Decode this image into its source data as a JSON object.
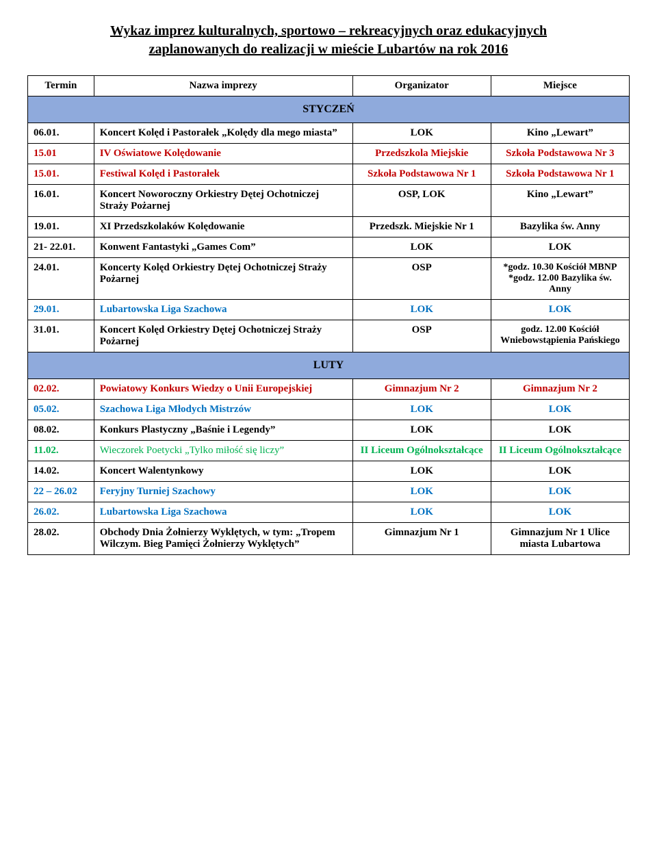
{
  "title_line1": "Wykaz imprez kulturalnych, sportowo – rekreacyjnych oraz edukacyjnych",
  "title_line2": "zaplanowanych do realizacji w mieście Lubartów na rok 2016",
  "columns": {
    "date": "Termin",
    "name": "Nazwa imprezy",
    "org": "Organizator",
    "place": "Miejsce"
  },
  "months": {
    "jan": "STYCZEŃ",
    "feb": "LUTY"
  },
  "colors": {
    "red": "#c00000",
    "blue": "#0070c0",
    "green": "#00b050",
    "black": "#000000",
    "month_bg": "#8faadc"
  },
  "typography": {
    "title_fontsize": 20,
    "header_fontsize": 15,
    "cell_fontsize": 15,
    "month_fontsize": 16,
    "font_family": "Times New Roman"
  },
  "rows_jan": [
    {
      "date": "06.01.",
      "name": "Koncert Kolęd i Pastorałek „Kolędy dla mego miasta”",
      "org": "LOK",
      "place": "Kino „Lewart”",
      "color": "black"
    },
    {
      "date": "15.01",
      "name": "IV Oświatowe Kolędowanie",
      "org": "Przedszkola Miejskie",
      "place": "Szkoła Podstawowa Nr 3",
      "color": "red"
    },
    {
      "date": "15.01.",
      "name": "Festiwal Kolęd i Pastorałek",
      "org": "Szkoła Podstawowa Nr 1",
      "place": "Szkoła Podstawowa  Nr 1",
      "color": "red"
    },
    {
      "date": "16.01.",
      "name": "Koncert Noworoczny Orkiestry Dętej Ochotniczej Straży Pożarnej",
      "org": "OSP, LOK",
      "place": "Kino „Lewart”",
      "color": "black"
    },
    {
      "date": "19.01.",
      "name": "XI Przedszkolaków Kolędowanie",
      "org": "Przedszk. Miejskie Nr 1",
      "place": "Bazylika św. Anny",
      "color": "black"
    },
    {
      "date": "21- 22.01.",
      "name": "Konwent Fantastyki „Games Com”",
      "org": "LOK",
      "place": "LOK",
      "color": "black"
    },
    {
      "date": "24.01.",
      "name": "Koncerty Kolęd Orkiestry Dętej Ochotniczej Straży Pożarnej",
      "org": "OSP",
      "place_line1": "*godz. 10.30 Kościół MBNP",
      "place_line2": "*godz. 12.00 Bazylika św. Anny",
      "color": "black",
      "place_multi": true
    },
    {
      "date": "29.01.",
      "name": "Lubartowska Liga Szachowa",
      "org": "LOK",
      "place": "LOK",
      "color": "blue"
    },
    {
      "date": "31.01.",
      "name": "Koncert Kolęd Orkiestry Dętej Ochotniczej Straży Pożarnej",
      "org": "OSP",
      "place_line1": "godz. 12.00 Kościół Wniebowstąpienia Pańskiego",
      "color": "black",
      "place_single_multi": true
    }
  ],
  "rows_feb": [
    {
      "date": "02.02.",
      "name": "Powiatowy Konkurs Wiedzy o Unii  Europejskiej",
      "org": "Gimnazjum Nr 2",
      "place": "Gimnazjum Nr 2",
      "color": "red"
    },
    {
      "date": "05.02.",
      "name": "Szachowa Liga Młodych Mistrzów",
      "org": "LOK",
      "place": "LOK",
      "color": "blue"
    },
    {
      "date": "08.02.",
      "name": "Konkurs Plastyczny „Baśnie i Legendy”",
      "org": "LOK",
      "place": "LOK",
      "color": "black"
    },
    {
      "date": "11.02.",
      "name": "Wieczorek Poetycki „Tylko miłość się liczy”",
      "org": "II Liceum Ogólnokształcące",
      "place": "II Liceum Ogólnokształcące",
      "color": "green",
      "name_weight": "normal"
    },
    {
      "date": "14.02.",
      "name": "Koncert Walentynkowy",
      "org": "LOK",
      "place": "LOK",
      "color": "black"
    },
    {
      "date": "22 – 26.02",
      "name": "Feryjny Turniej Szachowy",
      "org": "LOK",
      "place": "LOK",
      "color": "blue"
    },
    {
      "date": "26.02.",
      "name": "Lubartowska Liga Szachowa",
      "org": "LOK",
      "place": "LOK",
      "color": "blue"
    },
    {
      "date": "28.02.",
      "name": "Obchody Dnia Żołnierzy Wyklętych, w tym: „Tropem Wilczym. Bieg Pamięci Żołnierzy Wyklętych”",
      "org": "Gimnazjum Nr 1",
      "place": "Gimnazjum Nr 1 Ulice miasta Lubartowa",
      "color": "black"
    }
  ]
}
